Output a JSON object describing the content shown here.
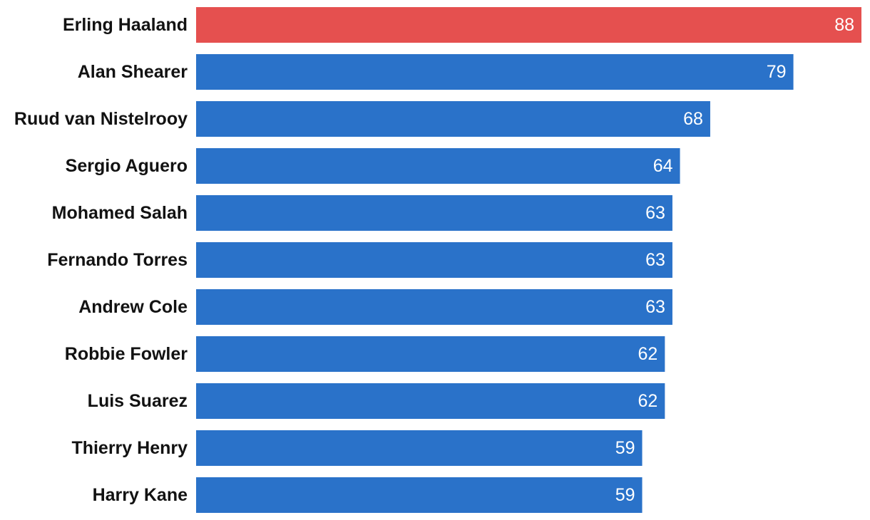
{
  "chart_data": {
    "type": "bar",
    "orientation": "horizontal",
    "title": "",
    "xlabel": "",
    "ylabel": "",
    "xlim": [
      0,
      88
    ],
    "grid": false,
    "legend": "none",
    "categories": [
      "Erling Haaland",
      "Alan Shearer",
      "Ruud van Nistelrooy",
      "Sergio Aguero",
      "Mohamed Salah",
      "Fernando Torres",
      "Andrew Cole",
      "Robbie Fowler",
      "Luis Suarez",
      "Thierry Henry",
      "Harry Kane"
    ],
    "values": [
      88,
      79,
      68,
      64,
      63,
      63,
      63,
      62,
      62,
      59,
      59
    ],
    "highlight_index": 0,
    "colors": {
      "highlight": "#e5504f",
      "bar": "#2a72c9",
      "label": "#121212",
      "value_label": "#ffffff"
    }
  }
}
